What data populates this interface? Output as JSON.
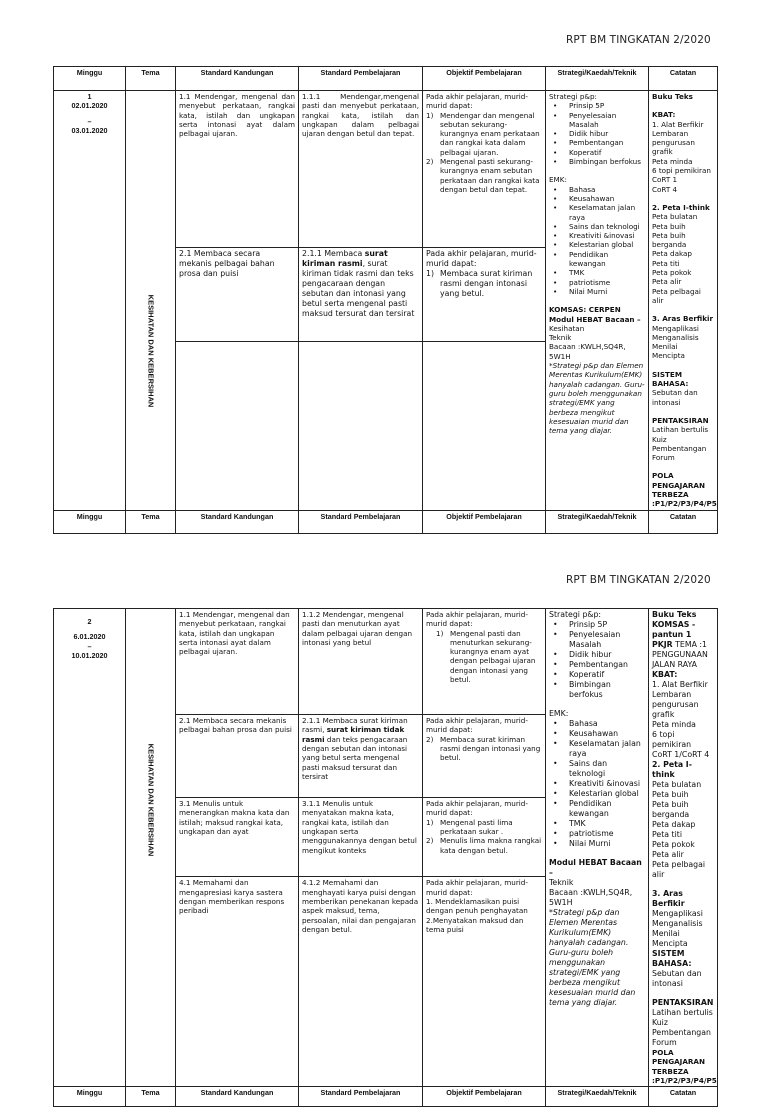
{
  "doc_title": "RPT BM TINGKATAN 2/2020",
  "headers": [
    "Minggu",
    "Tema",
    "Standard Kandungan",
    "Standard Pembelajaran",
    "Objektif Pembelajaran",
    "Strategi/Kaedah/Teknik",
    "Catatan"
  ],
  "page1": {
    "week": "1",
    "date_from": "02.01.2020",
    "dash": "–",
    "date_to": "03.01.2020",
    "tema": "KESIHATAN DAN KEBERSIHAN",
    "rows": [
      {
        "sk": [
          {
            "t": "1.1 Mendengar, mengenal dan menyebut perkataan, rangkai kata, istilah dan ungkapan serta intonasi ayat dalam pelbagai ujaran.",
            "c": "j"
          }
        ],
        "sp": [
          {
            "t": "1.1.1 Mendengar,mengenal pasti dan menyebut perkataan, rangkai kata, istilah dan ungkapan dalam pelbagai ujaran dengan betul dan tepat.",
            "c": "j"
          }
        ],
        "obj": [
          {
            "t": "Pada akhir pelajaran, murid-murid dapat:"
          },
          {
            "k": "num",
            "n": "1)",
            "t": "Mendengar dan mengenal sebutan sekurang-kurangnya enam perkataan dan rangkai kata dalam pelbagai ujaran."
          },
          {
            "k": "num",
            "n": "2)",
            "t": "Mengenal pasti sekurang-kurangnya enam sebutan perkataan dan rangkai kata dengan betul dan tepat."
          }
        ]
      },
      {
        "sk": [
          {
            "t": "2.1 Membaca secara mekanis pelbagai bahan prosa dan puisi",
            "c": "big"
          }
        ],
        "sp": [
          {
            "parts": [
              {
                "t": "2.1.1 Membaca "
              },
              {
                "t": "surat kiriman rasmi",
                "b": true
              },
              {
                "t": ", surat kiriman tidak rasmi dan teks pengacaraan dengan sebutan dan intonasi yang betul serta mengenal pasti maksud tersurat dan tersirat"
              }
            ],
            "c": "big"
          }
        ],
        "obj": [
          {
            "t": "Pada akhir pelajaran, murid-murid dapat:",
            "c": "big"
          },
          {
            "k": "num",
            "n": "1)",
            "t": "Membaca surat kiriman rasmi dengan intonasi yang betul.",
            "c": "big"
          }
        ]
      },
      {
        "sk": [],
        "sp": [],
        "obj": []
      }
    ],
    "strategi": [
      {
        "t": "Strategi p&p:"
      },
      {
        "k": "li",
        "t": "Prinsip 5P"
      },
      {
        "k": "li",
        "t": "Penyelesaian Masalah"
      },
      {
        "k": "li",
        "t": "Didik hibur"
      },
      {
        "k": "li",
        "t": "Pembentangan"
      },
      {
        "k": "li",
        "t": "Koperatif"
      },
      {
        "k": "li",
        "t": "Bimbingan berfokus"
      },
      {
        "k": "gap"
      },
      {
        "t": "EMK:"
      },
      {
        "k": "li",
        "t": "Bahasa"
      },
      {
        "k": "li",
        "t": "Keusahawan"
      },
      {
        "k": "li",
        "t": "Keselamatan jalan raya"
      },
      {
        "k": "li",
        "t": "Sains dan teknologi"
      },
      {
        "k": "li",
        "t": "Kreativiti &inovasi"
      },
      {
        "k": "li",
        "t": "Kelestarian global"
      },
      {
        "k": "li",
        "t": "Pendidikan kewangan"
      },
      {
        "k": "li",
        "t": "TMK"
      },
      {
        "k": "li",
        "t": "patriotisme"
      },
      {
        "k": "li",
        "t": "Nilai Murni"
      },
      {
        "k": "gap"
      },
      {
        "t": "KOMSAS: CERPEN",
        "c": "b"
      },
      {
        "t": "Modul HEBAT Bacaan –",
        "c": "b"
      },
      {
        "t": "Kesihatan"
      },
      {
        "t": "Teknik"
      },
      {
        "t": "Bacaan :KWLH,SQ4R, 5W1H"
      },
      {
        "t": "*Strategi p&p dan Elemen Merentas Kurikulum(EMK) hanyalah cadangan. Guru-guru boleh menggunakan strategi/EMK yang berbeza mengikut kesesuaian murid dan tema yang diajar.",
        "c": "i"
      }
    ],
    "catatan": [
      {
        "t": "Buku Teks",
        "c": "b"
      },
      {
        "k": "gap"
      },
      {
        "t": "KBAT:",
        "c": "b"
      },
      {
        "t": "1. Alat Berfikir"
      },
      {
        "t": "Lembaran pengurusan grafik"
      },
      {
        "t": "Peta minda"
      },
      {
        "t": "6 topi pemikiran"
      },
      {
        "t": "CoRT 1"
      },
      {
        "t": "CoRT 4"
      },
      {
        "k": "gap"
      },
      {
        "t": "2. Peta I-think",
        "c": "b"
      },
      {
        "t": "Peta bulatan"
      },
      {
        "t": "Peta buih"
      },
      {
        "t": "Peta buih berganda"
      },
      {
        "t": "Peta dakap"
      },
      {
        "t": "Peta titi"
      },
      {
        "t": "Peta pokok"
      },
      {
        "t": "Peta alir"
      },
      {
        "t": "Peta pelbagai alir"
      },
      {
        "k": "gap"
      },
      {
        "t": "3. Aras Berfikir",
        "c": "b"
      },
      {
        "t": "Mengaplikasi"
      },
      {
        "t": "Menganalisis"
      },
      {
        "t": "Menilai"
      },
      {
        "t": "Mencipta"
      },
      {
        "k": "gap"
      },
      {
        "t": "SISTEM BAHASA:",
        "c": "b"
      },
      {
        "t": "Sebutan dan intonasi"
      },
      {
        "k": "gap"
      },
      {
        "t": "PENTAKSIRAN",
        "c": "b"
      },
      {
        "t": "Latihan bertulis"
      },
      {
        "t": "Kuiz"
      },
      {
        "t": "Pembentangan"
      },
      {
        "t": "Forum"
      },
      {
        "k": "gap"
      },
      {
        "t": "POLA PENGAJARAN TERBEZA :P1/P2/P3/P4/P5/P6",
        "c": "b"
      }
    ]
  },
  "page2": {
    "week": "2",
    "date_from": "6.01.2020",
    "dash": "–",
    "date_to": "10.01.2020",
    "tema": "KESIHATAN DAN KEBERSIHAN",
    "rows": [
      {
        "sk": [
          {
            "t": "1.1 Mendengar, mengenal dan menyebut perkataan, rangkai kata, istilah dan ungkapan serta intonasi ayat dalam pelbagai ujaran."
          }
        ],
        "sp": [
          {
            "t": "1.1.2 Mendengar, mengenal pasti dan menuturkan ayat dalam pelbagai ujaran dengan intonasi yang betul"
          }
        ],
        "obj": [
          {
            "t": "Pada akhir pelajaran, murid-murid dapat:"
          },
          {
            "k": "num2",
            "n": "1)",
            "t": "Mengenal pasti dan menuturkan sekurang-kurangnya enam ayat dengan pelbagai ujaran dengan intonasi yang betul."
          }
        ]
      },
      {
        "sk": [
          {
            "t": "2.1 Membaca secara mekanis pelbagai bahan prosa dan puisi"
          }
        ],
        "sp": [
          {
            "parts": [
              {
                "t": "2.1.1 Membaca surat kiriman rasmi, "
              },
              {
                "t": "surat kiriman tidak rasmi",
                "b": true
              },
              {
                "t": " dan teks pengacaraan dengan sebutan dan intonasi yang betul serta mengenal pasti maksud tersurat dan tersirat"
              }
            ]
          }
        ],
        "obj": [
          {
            "t": "Pada akhir pelajaran, murid-murid dapat:"
          },
          {
            "k": "num",
            "n": "2)",
            "t": "Membaca surat kiriman rasmi dengan intonasi yang betul."
          }
        ]
      },
      {
        "sk": [
          {
            "t": "3.1 Menulis untuk menerangkan makna kata dan istilah; maksud rangkai kata, ungkapan dan ayat"
          }
        ],
        "sp": [
          {
            "t": "3.1.1 Menulis untuk menyatakan makna kata, rangkai kata, istilah dan ungkapan serta menggunakannya dengan betul mengikut konteks"
          }
        ],
        "obj": [
          {
            "t": "Pada akhir pelajaran, murid-murid dapat:"
          },
          {
            "k": "num",
            "n": "1)",
            "t": "Mengenal pasti lima perkataan sukar ."
          },
          {
            "k": "num",
            "n": "2)",
            "t": "Menulis lima makna rangkai kata dengan betul."
          }
        ]
      },
      {
        "sk": [
          {
            "t": "4.1 Memahami dan mengapresiasi karya sastera dengan memberikan respons peribadi"
          }
        ],
        "sp": [
          {
            "t": "4.1.2 Memahami dan menghayati karya puisi dengan memberikan penekanan kepada aspek maksud, tema, persoalan, nilai dan pengajaran dengan betul."
          }
        ],
        "obj": [
          {
            "t": "Pada akhir pelajaran, murid-murid dapat:"
          },
          {
            "t": "1. Mendeklamasikan puisi dengan penuh penghayatan"
          },
          {
            "t": "2.Menyatakan maksud dan tema puisi"
          }
        ]
      }
    ],
    "strategi": [
      {
        "t": "Strategi p&p:",
        "c": "big"
      },
      {
        "k": "li",
        "t": "Prinsip 5P",
        "c": "big"
      },
      {
        "k": "li",
        "t": "Penyelesaian Masalah",
        "c": "big"
      },
      {
        "k": "li",
        "t": "Didik hibur",
        "c": "big"
      },
      {
        "k": "li",
        "t": "Pembentangan",
        "c": "big"
      },
      {
        "k": "li",
        "t": "Koperatif",
        "c": "big"
      },
      {
        "k": "li",
        "t": "Bimbingan berfokus",
        "c": "big"
      },
      {
        "k": "gap"
      },
      {
        "t": "EMK:",
        "c": "big"
      },
      {
        "k": "li",
        "t": "Bahasa",
        "c": "big"
      },
      {
        "k": "li",
        "t": "Keusahawan",
        "c": "big"
      },
      {
        "k": "li",
        "t": "Keselamatan jalan raya",
        "c": "big"
      },
      {
        "k": "li",
        "t": "Sains dan teknologi",
        "c": "big"
      },
      {
        "k": "li",
        "t": "Kreativiti &inovasi",
        "c": "big"
      },
      {
        "k": "li",
        "t": "Kelestarian global",
        "c": "big"
      },
      {
        "k": "li",
        "t": "Pendidikan kewangan",
        "c": "big"
      },
      {
        "k": "li",
        "t": "TMK",
        "c": "big"
      },
      {
        "k": "li",
        "t": "patriotisme",
        "c": "big"
      },
      {
        "k": "li",
        "t": "Nilai Murni",
        "c": "big"
      },
      {
        "k": "gap"
      },
      {
        "t": "Modul HEBAT Bacaan –",
        "c": "b big"
      },
      {
        "t": "Teknik",
        "c": "big"
      },
      {
        "t": "Bacaan :KWLH,SQ4R, 5W1H",
        "c": "big"
      },
      {
        "t": "*Strategi p&p dan Elemen Merentas Kurikulum(EMK) hanyalah cadangan. Guru-guru boleh menggunakan strategi/EMK yang berbeza mengikut kesesuaian murid dan tema yang diajar.",
        "c": "i big"
      }
    ],
    "catatan": [
      {
        "t": "Buku Teks",
        "c": "b big"
      },
      {
        "t": "KOMSAS -pantun 1",
        "c": "b big"
      },
      {
        "parts": [
          {
            "t": "PKJR",
            "b": true
          },
          {
            "t": " TEMA :1 PENGGUNAAN JALAN RAYA"
          }
        ],
        "c": "big"
      },
      {
        "t": "KBAT:",
        "c": "b big"
      },
      {
        "t": "1. Alat Berfikir",
        "c": "big"
      },
      {
        "t": "Lembaran pengurusan grafik",
        "c": "big"
      },
      {
        "t": "Peta minda",
        "c": "big"
      },
      {
        "t": "6 topi pemikiran",
        "c": "big"
      },
      {
        "t": "CoRT 1/CoRT 4",
        "c": "big"
      },
      {
        "t": "2. Peta I-think",
        "c": "b big"
      },
      {
        "t": "Peta bulatan",
        "c": "big"
      },
      {
        "t": "Peta buih",
        "c": "big"
      },
      {
        "t": "Peta buih berganda",
        "c": "big"
      },
      {
        "t": "Peta dakap",
        "c": "big"
      },
      {
        "t": "Peta titi",
        "c": "big"
      },
      {
        "t": "Peta pokok",
        "c": "big"
      },
      {
        "t": "Peta alir",
        "c": "big"
      },
      {
        "t": "Peta pelbagai alir",
        "c": "big"
      },
      {
        "k": "gap"
      },
      {
        "t": "3. Aras Berfikir",
        "c": "b big"
      },
      {
        "t": "Mengaplikasi",
        "c": "big"
      },
      {
        "t": "Menganalisis",
        "c": "big"
      },
      {
        "t": "Menilai",
        "c": "big"
      },
      {
        "t": "Mencipta",
        "c": "big"
      },
      {
        "t": "SISTEM BAHASA:",
        "c": "b big"
      },
      {
        "t": "Sebutan dan intonasi",
        "c": "big"
      },
      {
        "k": "gap"
      },
      {
        "t": "PENTAKSIRAN",
        "c": "b big"
      },
      {
        "t": "Latihan bertulis",
        "c": "big"
      },
      {
        "t": "Kuiz",
        "c": "big"
      },
      {
        "t": "Pembentangan",
        "c": "big"
      },
      {
        "t": "Forum",
        "c": "big"
      },
      {
        "t": "POLA PENGAJARAN TERBEZA :P1/P2/P3/P4/P5/P6",
        "c": "b"
      }
    ]
  }
}
